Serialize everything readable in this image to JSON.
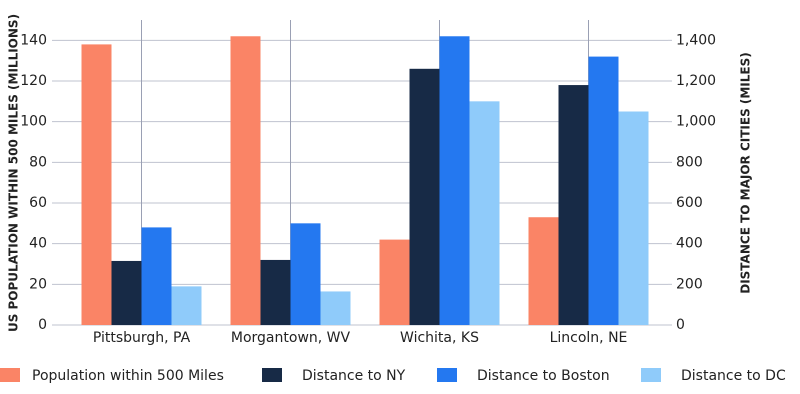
{
  "chart_data": {
    "type": "bar",
    "categories": [
      "Pittsburgh, PA",
      "Morgantown, WV",
      "Wichita, KS",
      "Lincoln, NE"
    ],
    "y_label": "US POPULATION WITHIN 500 MILES (MILLIONS)",
    "y2_label": "DISTANCE TO MAJOR CITIES (MILES)",
    "ylim": [
      0,
      150
    ],
    "yticks": [
      0,
      20,
      40,
      60,
      80,
      100,
      120,
      140
    ],
    "y2lim": [
      0,
      1500
    ],
    "y2ticks": [
      0,
      200,
      400,
      600,
      800,
      {
        "value": 1000,
        "label": "1,000"
      },
      {
        "value": 1200,
        "label": "1,200"
      },
      {
        "value": 1400,
        "label": "1,400"
      }
    ],
    "grid": true,
    "series": [
      {
        "name": "Population within 500 Miles",
        "color": "#fa8466",
        "values": [
          138,
          142,
          42,
          53
        ]
      },
      {
        "name": "Distance to NY",
        "color": "#172a46",
        "axis": "y2",
        "values": [
          315,
          320,
          1260,
          1180
        ]
      },
      {
        "name": "Distance to Boston",
        "color": "#2478f0",
        "axis": "y2",
        "values": [
          480,
          500,
          1420,
          1320
        ]
      },
      {
        "name": "Distance to DC",
        "color": "#8fcbfa",
        "axis": "y2",
        "values": [
          190,
          165,
          1100,
          1050
        ]
      }
    ]
  }
}
